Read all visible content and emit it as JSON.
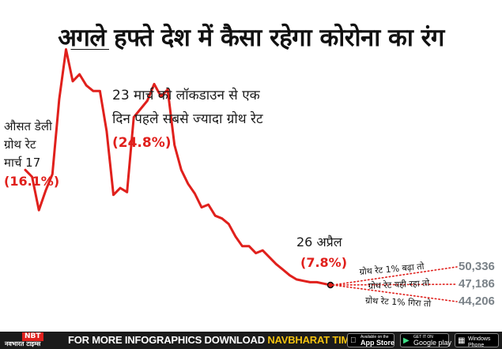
{
  "title": "अगले हफ्ते देश में कैसा रहेगा कोरोना का रंग",
  "chart_data": {
    "type": "line",
    "x": [
      0,
      1,
      2,
      3,
      4,
      5,
      6,
      7,
      8,
      9,
      10,
      11,
      12,
      13,
      14,
      15,
      16,
      17,
      18,
      19,
      20,
      21,
      22,
      23,
      24,
      25,
      26,
      27,
      28,
      29,
      30,
      31,
      32,
      33,
      34,
      35,
      36,
      37,
      38,
      39,
      40,
      41,
      42,
      43,
      44,
      45
    ],
    "y": [
      16.1,
      15.6,
      13.2,
      14.6,
      15.8,
      21.2,
      24.8,
      22.5,
      23.0,
      22.2,
      21.8,
      21.8,
      18.9,
      14.3,
      14.8,
      14.5,
      19.9,
      20.5,
      21.1,
      22.3,
      21.4,
      21.9,
      17.9,
      16.1,
      15.1,
      14.4,
      13.4,
      13.6,
      12.8,
      12.6,
      12.2,
      11.3,
      10.6,
      10.6,
      10.1,
      10.3,
      9.8,
      9.3,
      8.9,
      8.5,
      8.2,
      8.1,
      8.0,
      8.0,
      7.9,
      7.8
    ],
    "ylim": [
      7.0,
      25.0
    ],
    "grid": false,
    "annotations": {
      "start": {
        "lines": [
          "औसत डेली",
          "ग्रोथ रेट",
          "मार्च 17"
        ],
        "value": "(16.1%)"
      },
      "peak": {
        "lines": [
          "23 मार्च को लॉकडाउन से एक",
          "दिन पहले सबसे ज्यादा ग्रोथ रेट"
        ],
        "value": "(24.8%)"
      },
      "end": {
        "lines": [
          "26 अप्रैल"
        ],
        "value": "(7.8%)"
      }
    },
    "projections": [
      {
        "label": "ग्रोथ रेट 1% बढ़ा तो",
        "value": "50,336"
      },
      {
        "label": "ग्रोथ रेट यही रहा तो",
        "value": "47,186"
      },
      {
        "label": "ग्रोथ रेट 1% गिरा तो",
        "value": "44,206"
      }
    ],
    "line_color": "#e0201c"
  },
  "footer": {
    "logo_top": "NBT",
    "logo_bottom": "नवभारत टाइम्स",
    "text_prefix": "FOR MORE  INFOGRAPHICS DOWNLOAD ",
    "text_highlight": "NAVBHARAT  TIMES  APP",
    "badges": [
      {
        "small": "Available on the",
        "large": "App Store",
        "icon": "apple-icon"
      },
      {
        "small": "GET IT ON",
        "large": "Google play",
        "icon": "play-icon"
      },
      {
        "small": "",
        "large": "Windows Phone",
        "icon": "windows-icon"
      }
    ]
  }
}
